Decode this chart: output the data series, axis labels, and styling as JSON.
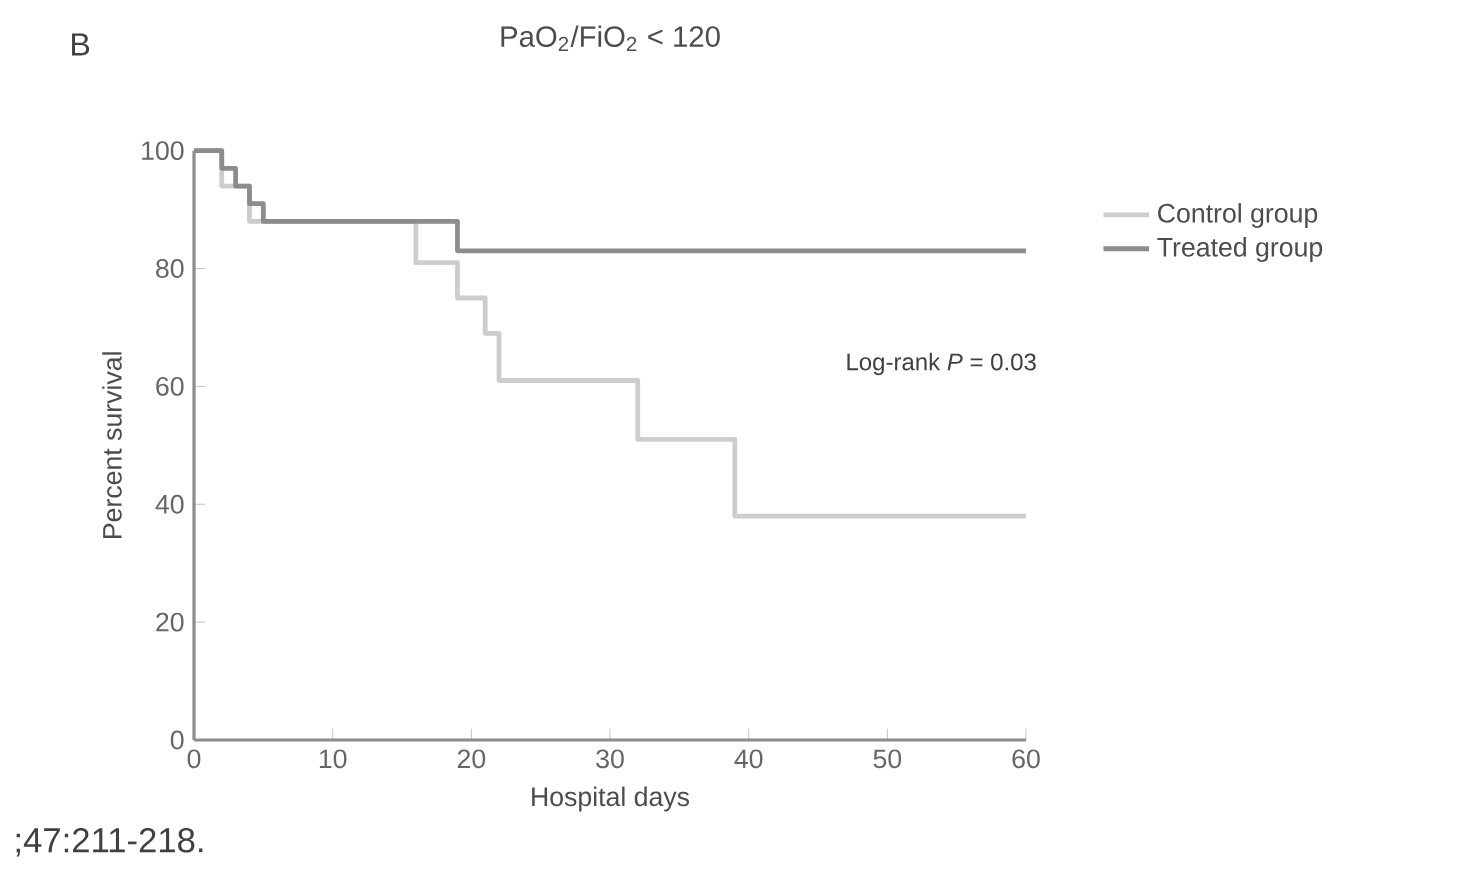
{
  "chart_data": {
    "type": "step",
    "title": "PaO$_{2}$/FiO$_{2}$ < 120",
    "xlabel": "Hospital days",
    "ylabel": "Percent survival",
    "annotations": [
      "B",
      "Log-rank *P* = 0.03",
      ";47:211-218."
    ],
    "series": [
      {
        "name": "Control group",
        "color": "#cdcdcd",
        "x": [
          0,
          2,
          4,
          16,
          19,
          21,
          22,
          32,
          39,
          60
        ],
        "values": [
          100,
          94,
          88,
          81,
          75,
          69,
          61,
          51,
          38,
          38
        ]
      },
      {
        "name": "Treated group",
        "color": "#8c8c8c",
        "x": [
          0,
          2,
          3,
          4,
          5,
          19,
          60
        ],
        "values": [
          100,
          97,
          94,
          91,
          88,
          83,
          83
        ]
      }
    ],
    "xlim": [
      0,
      60
    ],
    "xticks": [
      0,
      10,
      20,
      30,
      40,
      50,
      60
    ],
    "ylim": [
      0,
      100
    ],
    "yticks": [
      0,
      20,
      40,
      60,
      80,
      100
    ],
    "legend": "right",
    "grid": false,
    "marker": "none",
    "line_style": "solid"
  }
}
